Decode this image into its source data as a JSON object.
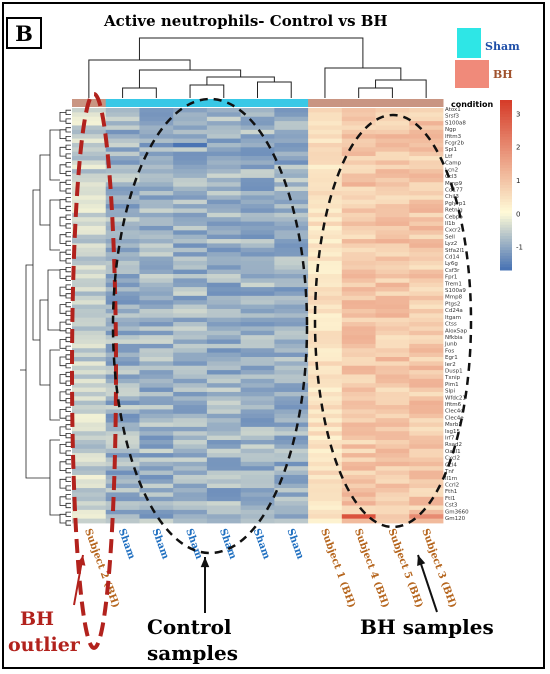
{
  "panel_letter": "B",
  "chart_data": {
    "type": "heatmap",
    "title": "Active neutrophils- Control vs BH",
    "columns": [
      {
        "label": "Subject 2 (BH)",
        "group": "BH"
      },
      {
        "label": "Sham",
        "group": "Sham"
      },
      {
        "label": "Sham",
        "group": "Sham"
      },
      {
        "label": "Sham",
        "group": "Sham"
      },
      {
        "label": "Sham",
        "group": "Sham"
      },
      {
        "label": "Sham",
        "group": "Sham"
      },
      {
        "label": "Sham",
        "group": "Sham"
      },
      {
        "label": "Subject 1 (BH)",
        "group": "BH"
      },
      {
        "label": "Subject 4 (BH)",
        "group": "BH"
      },
      {
        "label": "Subject 5 (BH)",
        "group": "BH"
      },
      {
        "label": "Subject 3 (BH)",
        "group": "BH"
      }
    ],
    "annotation_label": "condition",
    "legend": [
      {
        "name": "Sham",
        "color": "#2ee6e6",
        "text_color": "#1f4fa8"
      },
      {
        "name": "BH",
        "color": "#f08a7a",
        "text_color": "#a0522d"
      }
    ],
    "colorbar": {
      "ticks": [
        3,
        2,
        1,
        0,
        -1
      ],
      "min": -1.7,
      "max": 3.4,
      "low_color": "#4a74b4",
      "mid_color": "#fffbd8",
      "high_color": "#d63d2a"
    },
    "row_labels": [
      "Atox1",
      "Srsf3",
      "S100a8",
      "Ngp",
      "Ifitm3",
      "Fcgr2b",
      "Spi1",
      "Ltf",
      "Camp",
      "Lcn2",
      "Ccl3",
      "Mmp9",
      "Cd177",
      "Chil3",
      "Pglyrp1",
      "Retnlg",
      "Cebpb",
      "Il1b",
      "Cxcr2",
      "Sell",
      "Lyz2",
      "Stfa2l1",
      "Cd14",
      "Ly6g",
      "Csf3r",
      "Fpr1",
      "Trem1",
      "S100a9",
      "Mmp8",
      "Ptgs2",
      "Cd24a",
      "Itgam",
      "Ctss",
      "Alox5ap",
      "Nfkbia",
      "Junb",
      "Fos",
      "Egr1",
      "Ier2",
      "Dusp1",
      "Txnip",
      "Pim1",
      "Slpi",
      "Wfdc21",
      "Ifitm6",
      "Clec4d",
      "Clec4e",
      "Msrb1",
      "Isg15",
      "Irf7",
      "Rsad2",
      "Oasl1",
      "Cxcl2",
      "Ccl4",
      "Tnf",
      "Il1rn",
      "Ccrl2",
      "Fth1",
      "Ftl1",
      "Cst3",
      "Gm3660",
      "Gm120"
    ],
    "dendrogram_top": "hierarchical clustering of samples",
    "dendrogram_left": "hierarchical clustering of genes"
  },
  "annotations": {
    "outlier_line1": "BH",
    "outlier_line2": "outlier",
    "control_line1": "Control",
    "control_line2": "samples",
    "bh_samples": "BH samples"
  }
}
